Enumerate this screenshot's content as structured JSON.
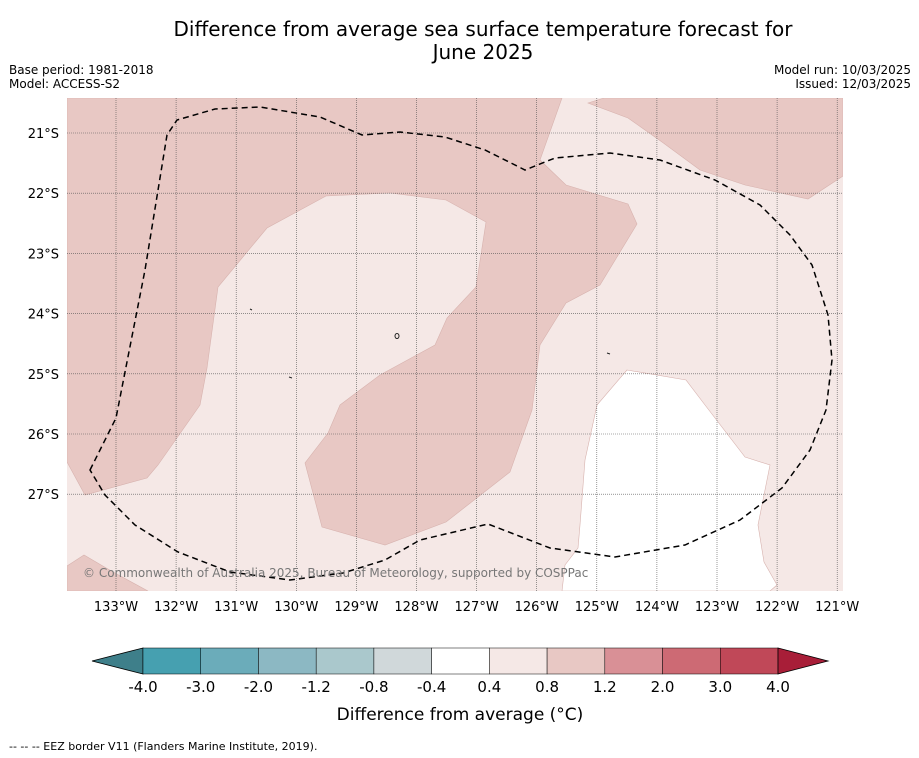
{
  "title_line1": "Difference from average sea surface temperature forecast for",
  "title_line2": "June 2025",
  "meta": {
    "base_period": "Base period: 1981-2018",
    "model": "Model: ACCESS-S2",
    "model_run": "Model run: 10/03/2025",
    "issued": "Issued: 12/03/2025"
  },
  "copyright": "© Commonwealth of Australia 2025, Bureau of Meteorology, supported by COSPPac",
  "lat_labels": [
    "21°S",
    "22°S",
    "23°S",
    "24°S",
    "25°S",
    "26°S",
    "27°S"
  ],
  "lon_labels": [
    "133°W",
    "132°W",
    "131°W",
    "130°W",
    "129°W",
    "128°W",
    "127°W",
    "126°W",
    "125°W",
    "124°W",
    "123°W",
    "122°W",
    "121°W"
  ],
  "colorbar": {
    "ticks": [
      "-4.0",
      "-3.0",
      "-2.0",
      "-1.2",
      "-0.8",
      "-0.4",
      "0.4",
      "0.8",
      "1.2",
      "2.0",
      "3.0",
      "4.0"
    ],
    "low_extend_color": "#3e7f8a",
    "colors": [
      "#46a0b0",
      "#6bacba",
      "#8cb8c3",
      "#aac8cc",
      "#d0d8da",
      "#ffffff",
      "#f5e8e6",
      "#e8c8c4",
      "#d99096",
      "#cd6a74",
      "#c04858"
    ],
    "high_extend_color": "#a81e38",
    "title": "Difference from average (°C)"
  },
  "footer": "--  --  -- EEZ border V11 (Flanders Marine Institute, 2019)."
}
